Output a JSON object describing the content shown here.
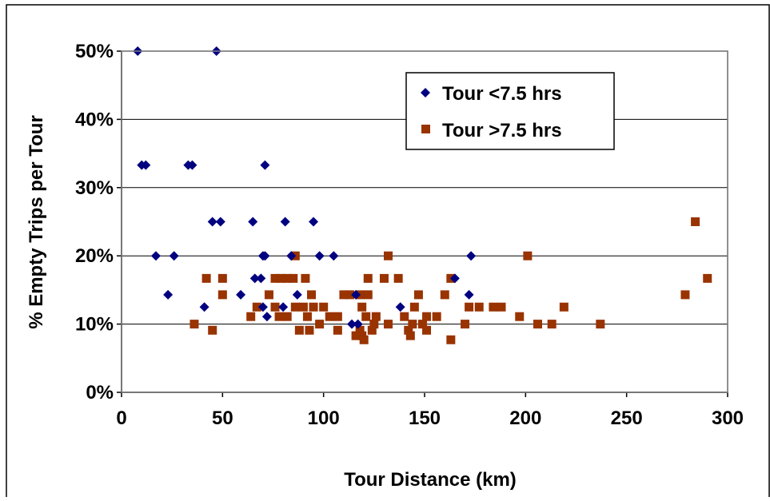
{
  "chart_data": {
    "type": "scatter",
    "title": "",
    "xlabel": "Tour Distance (km)",
    "ylabel": "% Empty Trips per Tour",
    "xlim": [
      0,
      300
    ],
    "ylim": [
      0,
      0.5
    ],
    "x_ticks": [
      {
        "value": 0,
        "label": "0"
      },
      {
        "value": 50,
        "label": "50"
      },
      {
        "value": 100,
        "label": "100"
      },
      {
        "value": 150,
        "label": "150"
      },
      {
        "value": 200,
        "label": "200"
      },
      {
        "value": 250,
        "label": "250"
      },
      {
        "value": 300,
        "label": "300"
      }
    ],
    "y_ticks": [
      {
        "value": 0,
        "label": "0%"
      },
      {
        "value": 0.1,
        "label": "10%"
      },
      {
        "value": 0.2,
        "label": "20%"
      },
      {
        "value": 0.3,
        "label": "30%"
      },
      {
        "value": 0.4,
        "label": "40%"
      },
      {
        "value": 0.5,
        "label": "50%"
      }
    ],
    "grid": "horizontal",
    "legend_position": "top-right",
    "series": [
      {
        "name": "Tour <7.5 hrs",
        "color": "#000080",
        "marker": "diamond",
        "points": [
          [
            8,
            0.5
          ],
          [
            47,
            0.5
          ],
          [
            10,
            0.333
          ],
          [
            12,
            0.333
          ],
          [
            33,
            0.333
          ],
          [
            35,
            0.333
          ],
          [
            71,
            0.333
          ],
          [
            45,
            0.25
          ],
          [
            49,
            0.25
          ],
          [
            65,
            0.25
          ],
          [
            81,
            0.25
          ],
          [
            95,
            0.25
          ],
          [
            17,
            0.2
          ],
          [
            26,
            0.2
          ],
          [
            70,
            0.2
          ],
          [
            71,
            0.2
          ],
          [
            84,
            0.2
          ],
          [
            98,
            0.2
          ],
          [
            105,
            0.2
          ],
          [
            173,
            0.2
          ],
          [
            66,
            0.167
          ],
          [
            69,
            0.167
          ],
          [
            165,
            0.167
          ],
          [
            23,
            0.143
          ],
          [
            59,
            0.143
          ],
          [
            87,
            0.143
          ],
          [
            116,
            0.143
          ],
          [
            172,
            0.143
          ],
          [
            41,
            0.125
          ],
          [
            70,
            0.125
          ],
          [
            80,
            0.125
          ],
          [
            138,
            0.125
          ],
          [
            72,
            0.111
          ],
          [
            114,
            0.1
          ],
          [
            117,
            0.1
          ]
        ]
      },
      {
        "name": "Tour >7.5 hrs",
        "color": "#993300",
        "marker": "square",
        "points": [
          [
            284,
            0.25
          ],
          [
            86,
            0.2
          ],
          [
            132,
            0.2
          ],
          [
            201,
            0.2
          ],
          [
            42,
            0.167
          ],
          [
            50,
            0.167
          ],
          [
            76,
            0.167
          ],
          [
            79,
            0.167
          ],
          [
            82,
            0.167
          ],
          [
            85,
            0.167
          ],
          [
            91,
            0.167
          ],
          [
            122,
            0.167
          ],
          [
            130,
            0.167
          ],
          [
            137,
            0.167
          ],
          [
            163,
            0.167
          ],
          [
            290,
            0.167
          ],
          [
            50,
            0.143
          ],
          [
            73,
            0.143
          ],
          [
            94,
            0.143
          ],
          [
            110,
            0.143
          ],
          [
            113,
            0.143
          ],
          [
            118,
            0.143
          ],
          [
            122,
            0.143
          ],
          [
            147,
            0.143
          ],
          [
            160,
            0.143
          ],
          [
            279,
            0.143
          ],
          [
            67,
            0.125
          ],
          [
            76,
            0.125
          ],
          [
            86,
            0.125
          ],
          [
            90,
            0.125
          ],
          [
            95,
            0.125
          ],
          [
            100,
            0.125
          ],
          [
            119,
            0.125
          ],
          [
            145,
            0.125
          ],
          [
            172,
            0.125
          ],
          [
            177,
            0.125
          ],
          [
            184,
            0.125
          ],
          [
            188,
            0.125
          ],
          [
            219,
            0.125
          ],
          [
            64,
            0.111
          ],
          [
            78,
            0.111
          ],
          [
            82,
            0.111
          ],
          [
            92,
            0.111
          ],
          [
            103,
            0.111
          ],
          [
            107,
            0.111
          ],
          [
            121,
            0.111
          ],
          [
            126,
            0.111
          ],
          [
            140,
            0.111
          ],
          [
            151,
            0.111
          ],
          [
            156,
            0.111
          ],
          [
            197,
            0.111
          ],
          [
            36,
            0.1
          ],
          [
            98,
            0.1
          ],
          [
            125,
            0.1
          ],
          [
            132,
            0.1
          ],
          [
            144,
            0.1
          ],
          [
            149,
            0.1
          ],
          [
            170,
            0.1
          ],
          [
            206,
            0.1
          ],
          [
            213,
            0.1
          ],
          [
            237,
            0.1
          ],
          [
            45,
            0.091
          ],
          [
            88,
            0.091
          ],
          [
            93,
            0.091
          ],
          [
            107,
            0.091
          ],
          [
            118,
            0.091
          ],
          [
            124,
            0.091
          ],
          [
            142,
            0.091
          ],
          [
            151,
            0.091
          ],
          [
            116,
            0.083
          ],
          [
            119,
            0.083
          ],
          [
            143,
            0.083
          ],
          [
            120,
            0.077
          ],
          [
            163,
            0.077
          ]
        ]
      }
    ]
  }
}
